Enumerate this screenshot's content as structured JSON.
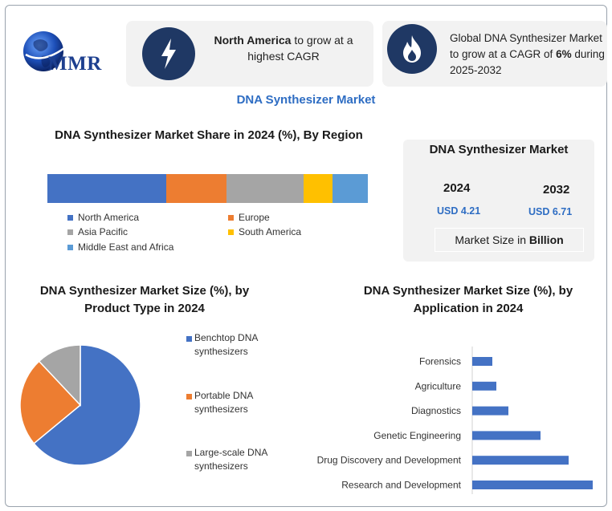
{
  "brand": {
    "logo_text": "MMR"
  },
  "cards": [
    {
      "icon": "lightning-icon",
      "bold": "North America",
      "rest": " to grow at a highest CAGR"
    },
    {
      "icon": "flame-icon",
      "pre": "Global DNA Synthesizer Market to grow at a CAGR of ",
      "bold": "6%",
      "post": " during 2025-2032"
    }
  ],
  "main_title": "DNA Synthesizer Market",
  "region": {
    "title": "DNA Synthesizer Market Share in 2024 (%), By Region"
  },
  "market_size": {
    "title": "DNA Synthesizer Market",
    "year_a": "2024",
    "value_a": "USD 4.21",
    "year_b": "2032",
    "value_b": "USD 6.71",
    "note_pre": "Market Size in ",
    "note_bold": "Billion"
  },
  "product": {
    "title": "DNA Synthesizer Market Size (%), by Product Type in 2024"
  },
  "application": {
    "title": "DNA Synthesizer Market Size (%), by Application in 2024"
  },
  "colors": {
    "blue": "#4472c4",
    "orange": "#ed7d31",
    "gray": "#a5a5a5",
    "yellow": "#ffc000",
    "light_blue": "#5b9bd5",
    "navy": "#1f3864",
    "title_blue": "#2e6dc3"
  },
  "chart_data": [
    {
      "type": "bar",
      "orientation": "horizontal-stacked",
      "title": "DNA Synthesizer Market Share in 2024 (%), By Region",
      "categories": [
        "North America",
        "Europe",
        "Asia Pacific",
        "South America",
        "Middle East and Africa"
      ],
      "values": [
        37,
        19,
        24,
        9,
        11
      ],
      "colors": [
        "#4472c4",
        "#ed7d31",
        "#a5a5a5",
        "#ffc000",
        "#5b9bd5"
      ],
      "legend": "bottom"
    },
    {
      "type": "pie",
      "title": "DNA Synthesizer Market Size (%), by Product Type in 2024",
      "categories": [
        "Benchtop DNA synthesizers",
        "Portable DNA synthesizers",
        "Large-scale DNA synthesizers"
      ],
      "values": [
        64,
        24,
        12
      ],
      "colors": [
        "#4472c4",
        "#ed7d31",
        "#a5a5a5"
      ],
      "legend": "right"
    },
    {
      "type": "bar",
      "orientation": "horizontal",
      "title": "DNA Synthesizer Market Size (%), by Application in 2024",
      "categories": [
        "Forensics",
        "Agriculture",
        "Diagnostics",
        "Genetic Engineering",
        "Drug Discovery and Development",
        "Research and Development"
      ],
      "values": [
        5,
        6,
        9,
        17,
        24,
        30
      ],
      "color": "#4472c4",
      "xlim": [
        0,
        30
      ],
      "grid": false
    }
  ]
}
